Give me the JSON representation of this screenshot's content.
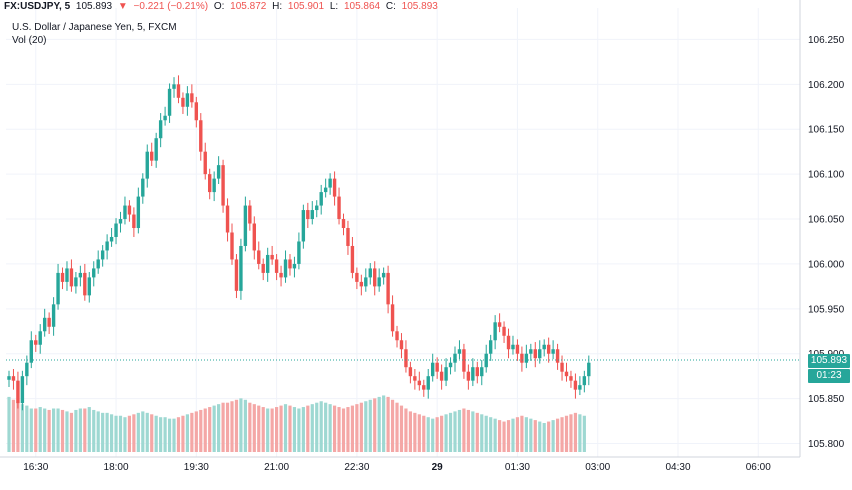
{
  "header": {
    "symbol": "FX:USDJPY, 5",
    "last": "105.893",
    "change_arrow": "▼",
    "change": "−0.221 (−0.21%)",
    "o_label": "O:",
    "o_value": "105.872",
    "h_label": "H:",
    "h_value": "105.901",
    "l_label": "L:",
    "l_value": "105.864",
    "c_label": "C:",
    "c_value": "105.893",
    "name_line": "U.S. Dollar / Japanese Yen, 5, FXCM",
    "volume_line": "Vol (20)"
  },
  "price_tag": {
    "price": "105.893",
    "countdown": "01:23"
  },
  "colors": {
    "up": "#26a69a",
    "down": "#ef5350",
    "up_volume": "#9ed8d2",
    "down_volume": "#f4a7a6",
    "grid": "#f0f3fa",
    "axis": "#d1d4dc",
    "price_line": "#26a69a"
  },
  "chart_data": {
    "type": "candlestick",
    "symbol": "FX:USDJPY",
    "interval": "5",
    "ylim": [
      105.785,
      106.285
    ],
    "y_ticks": [
      "106.250",
      "106.200",
      "106.150",
      "106.100",
      "106.050",
      "106.000",
      "105.950",
      "105.900",
      "105.850",
      "105.800"
    ],
    "x_ticks": [
      {
        "label": "16:30",
        "index": 6
      },
      {
        "label": "18:00",
        "index": 24
      },
      {
        "label": "19:30",
        "index": 42
      },
      {
        "label": "21:00",
        "index": 60
      },
      {
        "label": "22:30",
        "index": 78
      },
      {
        "label": "29",
        "index": 96,
        "bold": true
      },
      {
        "label": "01:30",
        "index": 114
      },
      {
        "label": "03:00",
        "index": 132
      },
      {
        "label": "04:30",
        "index": 150
      },
      {
        "label": "06:00",
        "index": 168
      }
    ],
    "current_price": 105.893,
    "grid": true,
    "candles": [
      105.875,
      105.87,
      105.845,
      105.875,
      105.89,
      105.915,
      105.91,
      105.925,
      105.94,
      105.93,
      105.955,
      105.99,
      105.98,
      105.995,
      105.975,
      105.985,
      105.99,
      105.965,
      105.985,
      105.995,
      106.005,
      106.015,
      106.025,
      106.03,
      106.045,
      106.05,
      106.065,
      106.055,
      106.04,
      106.075,
      106.095,
      106.125,
      106.115,
      106.14,
      106.16,
      106.165,
      106.195,
      106.2,
      106.185,
      106.175,
      106.19,
      106.18,
      106.16,
      106.125,
      106.1,
      106.08,
      106.095,
      106.11,
      106.065,
      106.035,
      106.005,
      105.97,
      106.02,
      106.065,
      106.045,
      106.015,
      106.0,
      105.99,
      106.01,
      106.005,
      105.99,
      105.985,
      106.005,
      105.995,
      106.0,
      106.025,
      106.06,
      106.05,
      106.06,
      106.065,
      106.08,
      106.085,
      106.095,
      106.075,
      106.05,
      106.04,
      106.02,
      105.99,
      105.98,
      105.975,
      105.985,
      105.995,
      105.975,
      105.985,
      105.99,
      105.955,
      105.925,
      105.915,
      105.905,
      105.885,
      105.875,
      105.87,
      105.865,
      105.86,
      105.875,
      105.89,
      105.88,
      105.87,
      105.885,
      105.89,
      105.9,
      105.905,
      105.88,
      105.87,
      105.885,
      105.875,
      105.885,
      105.9,
      105.915,
      105.935,
      105.93,
      105.92,
      105.905,
      105.91,
      105.9,
      105.89,
      105.9,
      105.905,
      105.895,
      105.905,
      105.91,
      105.9,
      105.905,
      105.89,
      105.88,
      105.875,
      105.87,
      105.86,
      105.865,
      105.875,
      105.89
    ],
    "volume": [
      38,
      36,
      34,
      33,
      32,
      30,
      30,
      31,
      30,
      29,
      30,
      30,
      29,
      28,
      27,
      29,
      30,
      30,
      31,
      29,
      28,
      27,
      27,
      26,
      25,
      25,
      24,
      25,
      26,
      27,
      28,
      27,
      26,
      25,
      24,
      24,
      23,
      23,
      24,
      25,
      26,
      27,
      28,
      29,
      30,
      31,
      32,
      33,
      34,
      34,
      35,
      36,
      37,
      36,
      34,
      33,
      32,
      31,
      30,
      30,
      31,
      32,
      33,
      32,
      31,
      30,
      31,
      32,
      33,
      34,
      35,
      34,
      33,
      32,
      31,
      30,
      31,
      32,
      33,
      34,
      35,
      36,
      37,
      38,
      39,
      38,
      36,
      34,
      32,
      30,
      28,
      27,
      26,
      25,
      24,
      23,
      24,
      25,
      26,
      27,
      28,
      29,
      30,
      29,
      28,
      27,
      26,
      25,
      24,
      23,
      22,
      21,
      22,
      23,
      24,
      25,
      24,
      23,
      22,
      21,
      20,
      21,
      22,
      23,
      24,
      25,
      26,
      27,
      26,
      25
    ]
  }
}
